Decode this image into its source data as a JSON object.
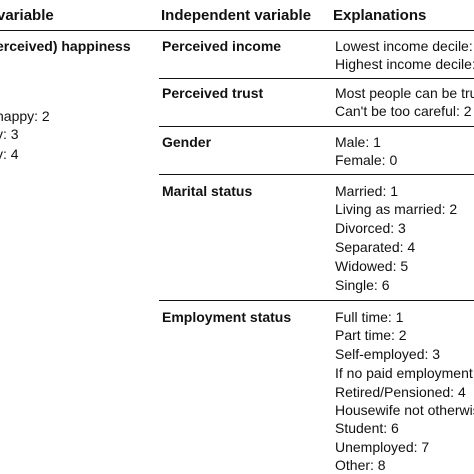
{
  "headers": {
    "dependent": "variable",
    "independent": "Independent variable",
    "explanations": "Explanations"
  },
  "dependent_variable": {
    "name": "erceived) happiness",
    "values": [
      "nappy: 2",
      "y: 3",
      "y: 4"
    ]
  },
  "rows": [
    {
      "name": "Perceived income",
      "explanations": [
        "Lowest income decile: 1",
        "Highest income decile:"
      ]
    },
    {
      "name": "Perceived trust",
      "explanations": [
        "Most people can be trus",
        "Can't be too careful: 2"
      ]
    },
    {
      "name": "Gender",
      "explanations": [
        "Male: 1",
        "Female: 0"
      ]
    },
    {
      "name": "Marital status",
      "explanations": [
        "Married: 1",
        "Living as married: 2",
        "Divorced: 3",
        "Separated: 4",
        "Widowed: 5",
        "Single: 6"
      ]
    },
    {
      "name": "Employment status",
      "explanations": [
        "Full time: 1",
        "Part time: 2",
        "Self-employed: 3",
        "If no paid employment:",
        "Retired/Pensioned: 4",
        "Housewife not otherwis",
        "Student: 6",
        "Unemployed: 7",
        "Other: 8"
      ]
    }
  ]
}
